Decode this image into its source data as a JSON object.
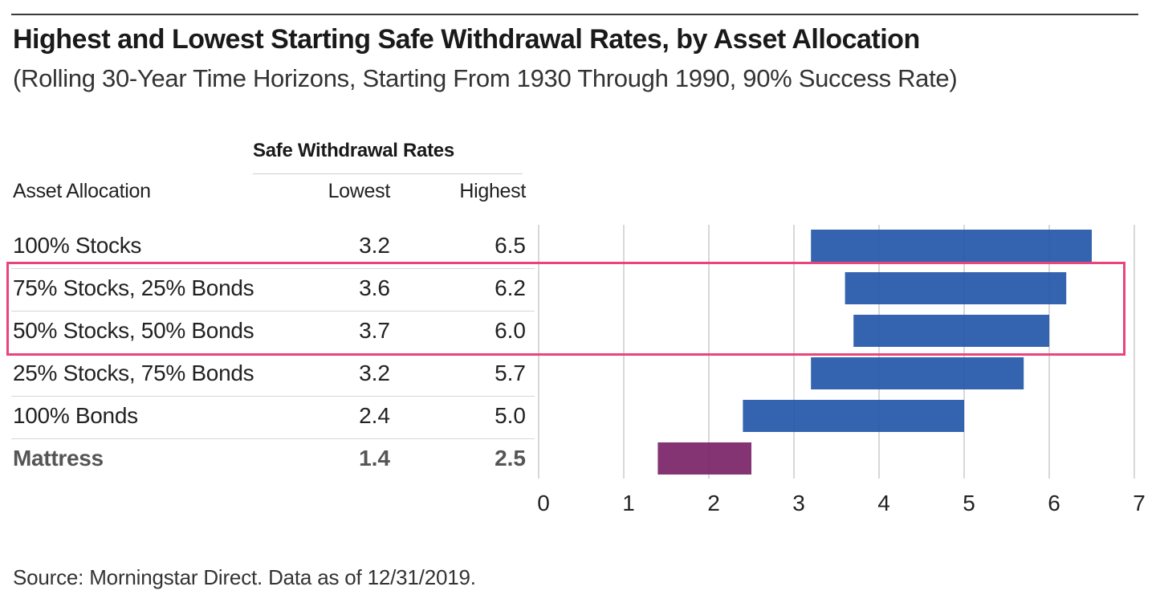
{
  "title": "Highest and Lowest Starting Safe Withdrawal Rates, by Asset Allocation",
  "subtitle": "(Rolling 30-Year Time Horizons, Starting From 1930 Through 1990, 90% Success Rate)",
  "table": {
    "group_header": "Safe Withdrawal Rates",
    "columns": {
      "asset": "Asset Allocation",
      "lowest": "Lowest",
      "highest": "Highest"
    },
    "rows": [
      {
        "label": "100% Stocks",
        "lowest": "3.2",
        "highest": "6.5"
      },
      {
        "label": "75% Stocks, 25% Bonds",
        "lowest": "3.6",
        "highest": "6.2"
      },
      {
        "label": "50% Stocks, 50% Bonds",
        "lowest": "3.7",
        "highest": "6.0"
      },
      {
        "label": "25% Stocks, 75% Bonds",
        "lowest": "3.2",
        "highest": "5.7"
      },
      {
        "label": "100% Bonds",
        "lowest": "2.4",
        "highest": "5.0"
      },
      {
        "label": "Mattress",
        "lowest": "1.4",
        "highest": "2.5"
      }
    ]
  },
  "chart_data": {
    "type": "bar",
    "orientation": "horizontal-range",
    "categories": [
      "100% Stocks",
      "75% Stocks, 25% Bonds",
      "50% Stocks, 50% Bonds",
      "25% Stocks, 75% Bonds",
      "100% Bonds",
      "Mattress"
    ],
    "ranges": [
      [
        3.2,
        6.5
      ],
      [
        3.6,
        6.2
      ],
      [
        3.7,
        6.0
      ],
      [
        3.2,
        5.7
      ],
      [
        2.4,
        5.0
      ],
      [
        1.4,
        2.5
      ]
    ],
    "xlim": [
      0,
      7
    ],
    "xticks": [
      "0",
      "1",
      "2",
      "3",
      "4",
      "5",
      "6",
      "7"
    ],
    "grid": true,
    "colors": {
      "default": "#2356a8",
      "Mattress": "#7a2367"
    },
    "highlight_rows": [
      "75% Stocks, 25% Bonds",
      "50% Stocks, 50% Bonds"
    ]
  },
  "colors": {
    "highlight": "#e8457a",
    "grid": "#cccccc"
  },
  "source": "Source: Morningstar Direct. Data as of 12/31/2019."
}
